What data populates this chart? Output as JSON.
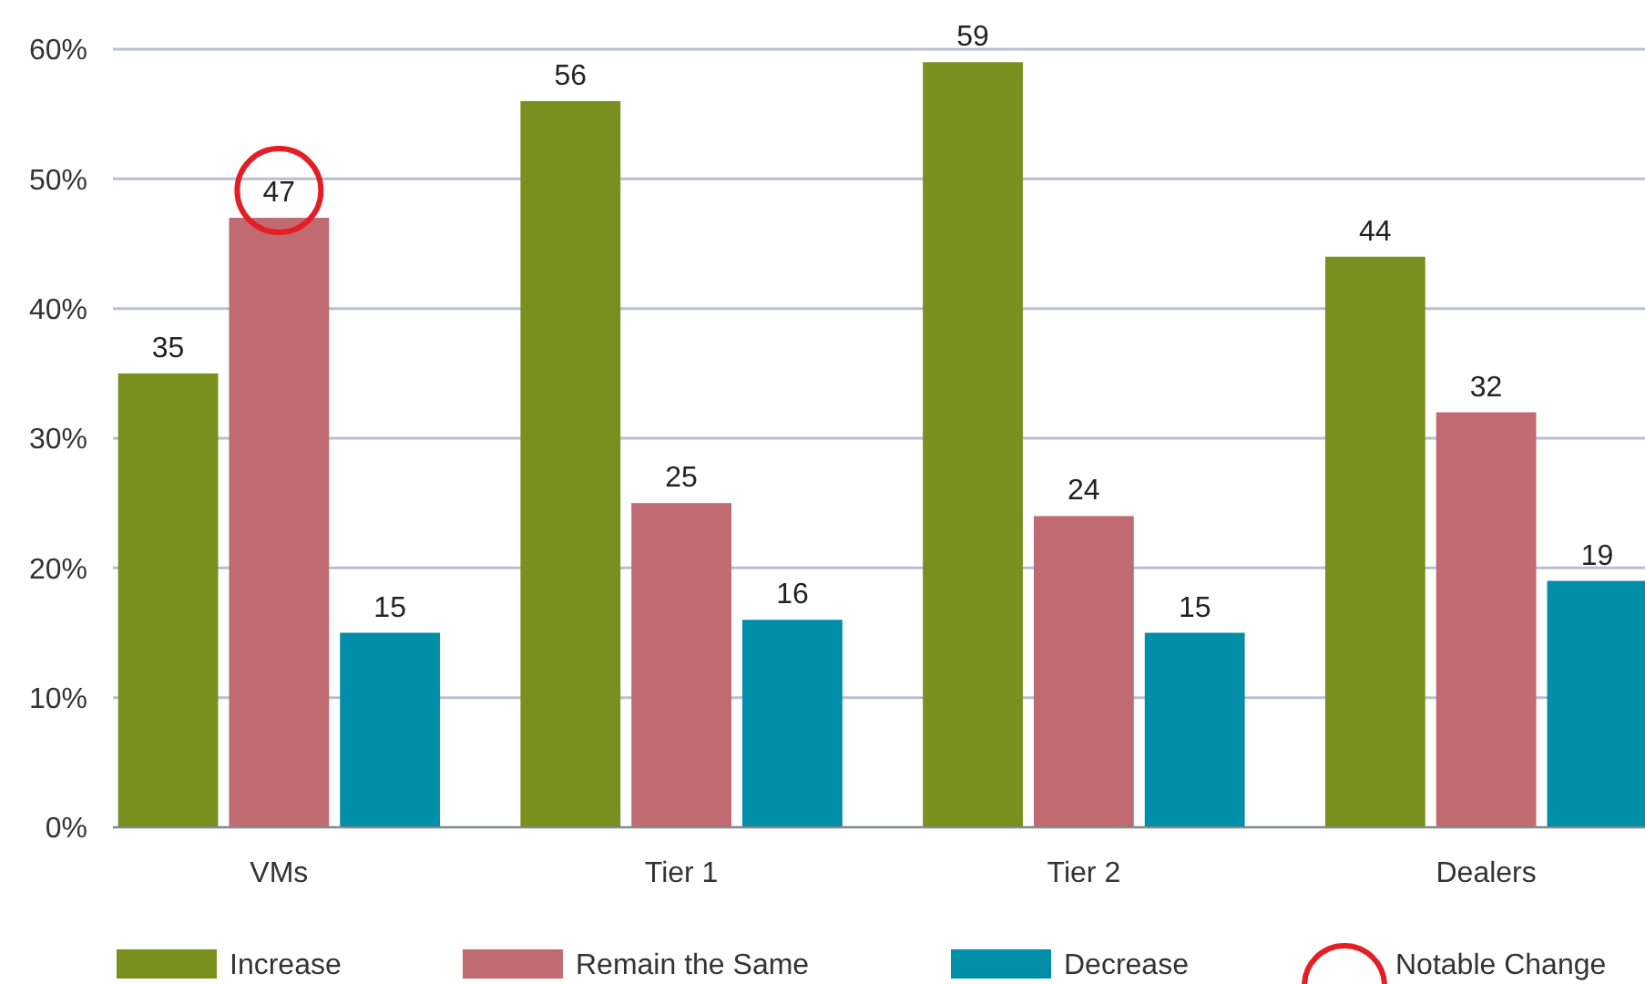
{
  "chart_data": {
    "type": "bar",
    "categories": [
      "VMs",
      "Tier 1",
      "Tier 2",
      "Dealers"
    ],
    "series": [
      {
        "name": "Increase",
        "color": "#7a8f1e",
        "values": [
          35,
          56,
          59,
          44
        ]
      },
      {
        "name": "Remain the Same",
        "color": "#c06a72",
        "values": [
          47,
          25,
          24,
          32
        ]
      },
      {
        "name": "Decrease",
        "color": "#008ea8",
        "values": [
          15,
          16,
          15,
          19
        ]
      }
    ],
    "ylim": [
      0,
      60
    ],
    "yticks": [
      {
        "value": 0,
        "label": "0%"
      },
      {
        "value": 10,
        "label": "10%"
      },
      {
        "value": 20,
        "label": "20%"
      },
      {
        "value": 30,
        "label": "30%"
      },
      {
        "value": 40,
        "label": "40%"
      },
      {
        "value": 50,
        "label": "50%"
      },
      {
        "value": 60,
        "label": "60%"
      }
    ],
    "grid": "y",
    "legend": "bottom",
    "data_labels": true,
    "annotations": [
      "Notable Change"
    ]
  }
}
